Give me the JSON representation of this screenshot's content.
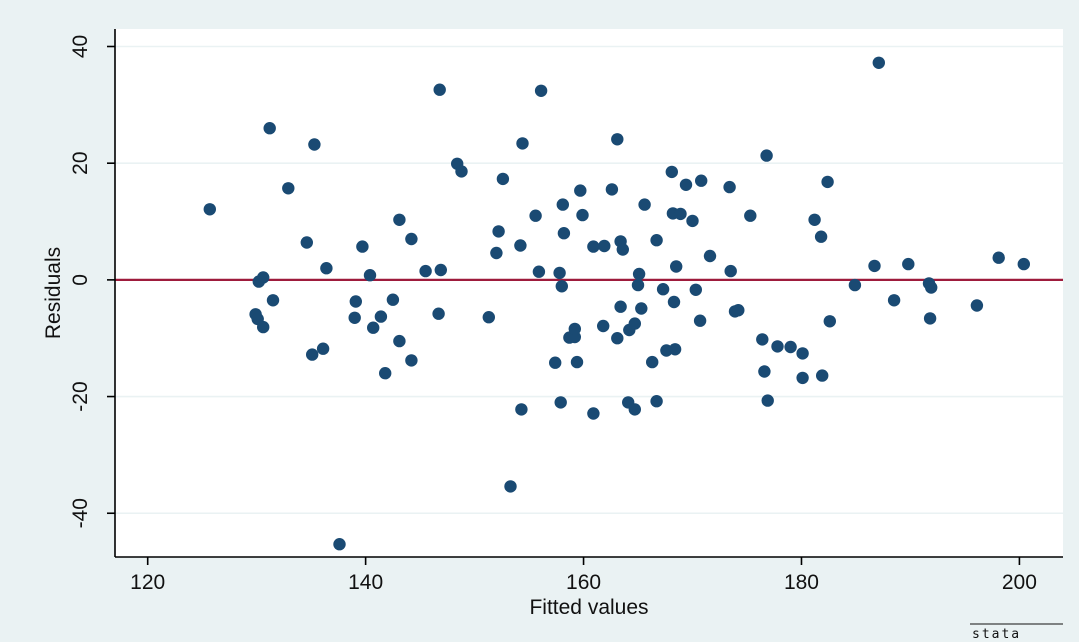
{
  "chart_data": {
    "type": "scatter",
    "title": "",
    "xlabel": "Fitted values",
    "ylabel": "Residuals",
    "xlim": [
      117,
      204
    ],
    "ylim": [
      -47.5,
      43
    ],
    "xticks": [
      120,
      140,
      160,
      180,
      200
    ],
    "yticks": [
      -40,
      -20,
      0,
      20,
      40
    ],
    "xtick_labels": [
      "120",
      "140",
      "160",
      "180",
      "200"
    ],
    "ytick_labels": [
      "-40",
      "-20",
      "0",
      "20",
      "40"
    ],
    "grid": "horizontal",
    "reference_line": {
      "y": 0,
      "color": "#9e1b3c"
    },
    "colors": {
      "background": "#eaf2f3",
      "plot_area": "#ffffff",
      "marker": "#1a4a73",
      "gridline": "#eaf2f3"
    },
    "branding": "stata",
    "points": [
      [
        125.7,
        12.1
      ],
      [
        129.9,
        -5.9
      ],
      [
        130.1,
        -6.7
      ],
      [
        130.2,
        -0.3
      ],
      [
        130.6,
        0.4
      ],
      [
        130.6,
        -8.1
      ],
      [
        131.2,
        26.0
      ],
      [
        131.5,
        -3.5
      ],
      [
        132.9,
        15.7
      ],
      [
        134.6,
        6.4
      ],
      [
        135.1,
        -12.8
      ],
      [
        135.3,
        23.2
      ],
      [
        136.1,
        -11.8
      ],
      [
        136.4,
        2.0
      ],
      [
        137.6,
        -45.3
      ],
      [
        139.1,
        -3.7
      ],
      [
        139.0,
        -6.5
      ],
      [
        139.7,
        5.7
      ],
      [
        140.4,
        0.8
      ],
      [
        140.7,
        -8.2
      ],
      [
        141.4,
        -6.3
      ],
      [
        141.8,
        -16.0
      ],
      [
        142.5,
        -3.4
      ],
      [
        143.1,
        10.3
      ],
      [
        143.1,
        -10.5
      ],
      [
        144.2,
        7.0
      ],
      [
        144.2,
        -13.8
      ],
      [
        145.5,
        1.5
      ],
      [
        146.7,
        -5.8
      ],
      [
        146.8,
        32.6
      ],
      [
        146.9,
        1.7
      ],
      [
        148.4,
        19.9
      ],
      [
        148.8,
        18.6
      ],
      [
        151.3,
        -6.4
      ],
      [
        152.0,
        4.6
      ],
      [
        152.2,
        8.3
      ],
      [
        152.6,
        17.3
      ],
      [
        153.3,
        -35.4
      ],
      [
        154.2,
        5.9
      ],
      [
        154.3,
        -22.2
      ],
      [
        154.4,
        23.4
      ],
      [
        155.6,
        11.0
      ],
      [
        155.9,
        1.4
      ],
      [
        156.1,
        32.4
      ],
      [
        157.4,
        -14.2
      ],
      [
        157.8,
        1.2
      ],
      [
        157.9,
        -21.0
      ],
      [
        158.0,
        -1.1
      ],
      [
        158.1,
        12.9
      ],
      [
        158.2,
        8.0
      ],
      [
        158.7,
        -9.9
      ],
      [
        159.2,
        -9.8
      ],
      [
        159.2,
        -8.4
      ],
      [
        159.4,
        -14.1
      ],
      [
        159.7,
        15.3
      ],
      [
        159.9,
        11.1
      ],
      [
        160.9,
        -22.9
      ],
      [
        160.9,
        5.7
      ],
      [
        161.8,
        -7.9
      ],
      [
        161.9,
        5.8
      ],
      [
        162.6,
        15.5
      ],
      [
        163.1,
        -10.0
      ],
      [
        163.1,
        24.1
      ],
      [
        163.4,
        -4.6
      ],
      [
        163.4,
        6.6
      ],
      [
        163.6,
        5.2
      ],
      [
        164.1,
        -21.0
      ],
      [
        164.2,
        -8.6
      ],
      [
        164.7,
        -22.2
      ],
      [
        164.7,
        -7.5
      ],
      [
        165.0,
        -0.9
      ],
      [
        165.1,
        1.0
      ],
      [
        165.3,
        -4.9
      ],
      [
        165.6,
        12.9
      ],
      [
        166.3,
        -14.1
      ],
      [
        166.7,
        -20.8
      ],
      [
        166.7,
        6.8
      ],
      [
        167.3,
        -1.6
      ],
      [
        167.6,
        -12.1
      ],
      [
        168.1,
        18.5
      ],
      [
        168.2,
        11.4
      ],
      [
        168.3,
        -3.8
      ],
      [
        168.4,
        -11.9
      ],
      [
        168.5,
        2.3
      ],
      [
        168.9,
        11.3
      ],
      [
        169.4,
        16.3
      ],
      [
        170.0,
        10.1
      ],
      [
        170.3,
        -1.7
      ],
      [
        170.7,
        -7.0
      ],
      [
        170.8,
        17.0
      ],
      [
        171.6,
        4.1
      ],
      [
        173.4,
        15.9
      ],
      [
        173.5,
        1.5
      ],
      [
        173.9,
        -5.4
      ],
      [
        174.2,
        -5.2
      ],
      [
        175.3,
        11.0
      ],
      [
        176.4,
        -10.2
      ],
      [
        176.6,
        -15.7
      ],
      [
        176.8,
        21.3
      ],
      [
        176.9,
        -20.7
      ],
      [
        177.8,
        -11.4
      ],
      [
        179.0,
        -11.5
      ],
      [
        180.1,
        -12.6
      ],
      [
        180.1,
        -16.8
      ],
      [
        181.2,
        10.3
      ],
      [
        181.8,
        7.4
      ],
      [
        181.9,
        -16.4
      ],
      [
        182.4,
        16.8
      ],
      [
        182.6,
        -7.1
      ],
      [
        184.9,
        -0.9
      ],
      [
        186.7,
        2.4
      ],
      [
        187.1,
        37.2
      ],
      [
        188.5,
        -3.5
      ],
      [
        189.8,
        2.7
      ],
      [
        191.7,
        -0.6
      ],
      [
        191.8,
        -6.6
      ],
      [
        191.9,
        -1.3
      ],
      [
        196.1,
        -4.4
      ],
      [
        198.1,
        3.8
      ],
      [
        200.4,
        2.7
      ]
    ]
  }
}
